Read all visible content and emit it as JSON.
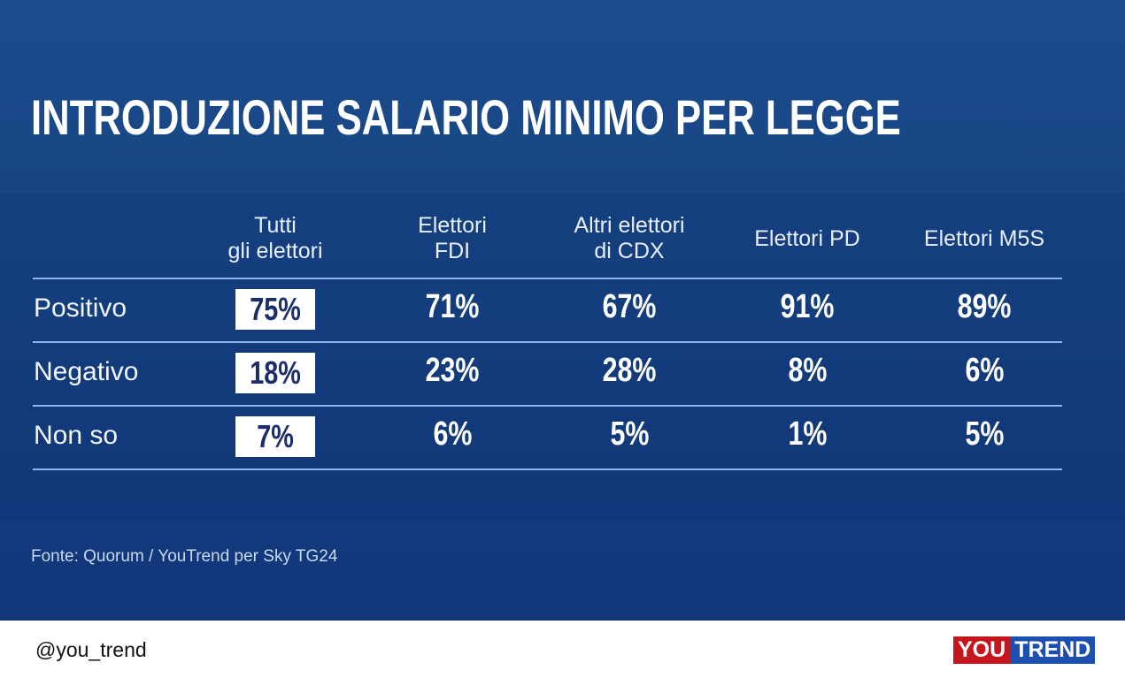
{
  "chart_data": {
    "type": "table",
    "title": "INTRODUZIONE SALARIO MINIMO PER LEGGE",
    "columns": [
      [
        "Tutti",
        "gli elettori"
      ],
      [
        "Elettori",
        "FDI"
      ],
      [
        "Altri elettori",
        "di CDX"
      ],
      [
        "Elettori PD"
      ],
      [
        "Elettori M5S"
      ]
    ],
    "rows": [
      {
        "label": "Positivo",
        "values": [
          "75%",
          "71%",
          "67%",
          "91%",
          "89%"
        ]
      },
      {
        "label": "Negativo",
        "values": [
          "18%",
          "23%",
          "28%",
          "8%",
          "6%"
        ]
      },
      {
        "label": "Non so",
        "values": [
          "7%",
          "6%",
          "5%",
          "1%",
          "5%"
        ]
      }
    ],
    "source": "Fonte: Quorum / YouTrend per Sky TG24"
  },
  "footer": {
    "handle": "@you_trend",
    "logo_left": "YOU",
    "logo_right": "TREND"
  },
  "colors": {
    "background": "#184684",
    "highlight_text": "#1b2d6b",
    "logo_red": "#c4161c",
    "logo_blue": "#1d4fb0"
  }
}
